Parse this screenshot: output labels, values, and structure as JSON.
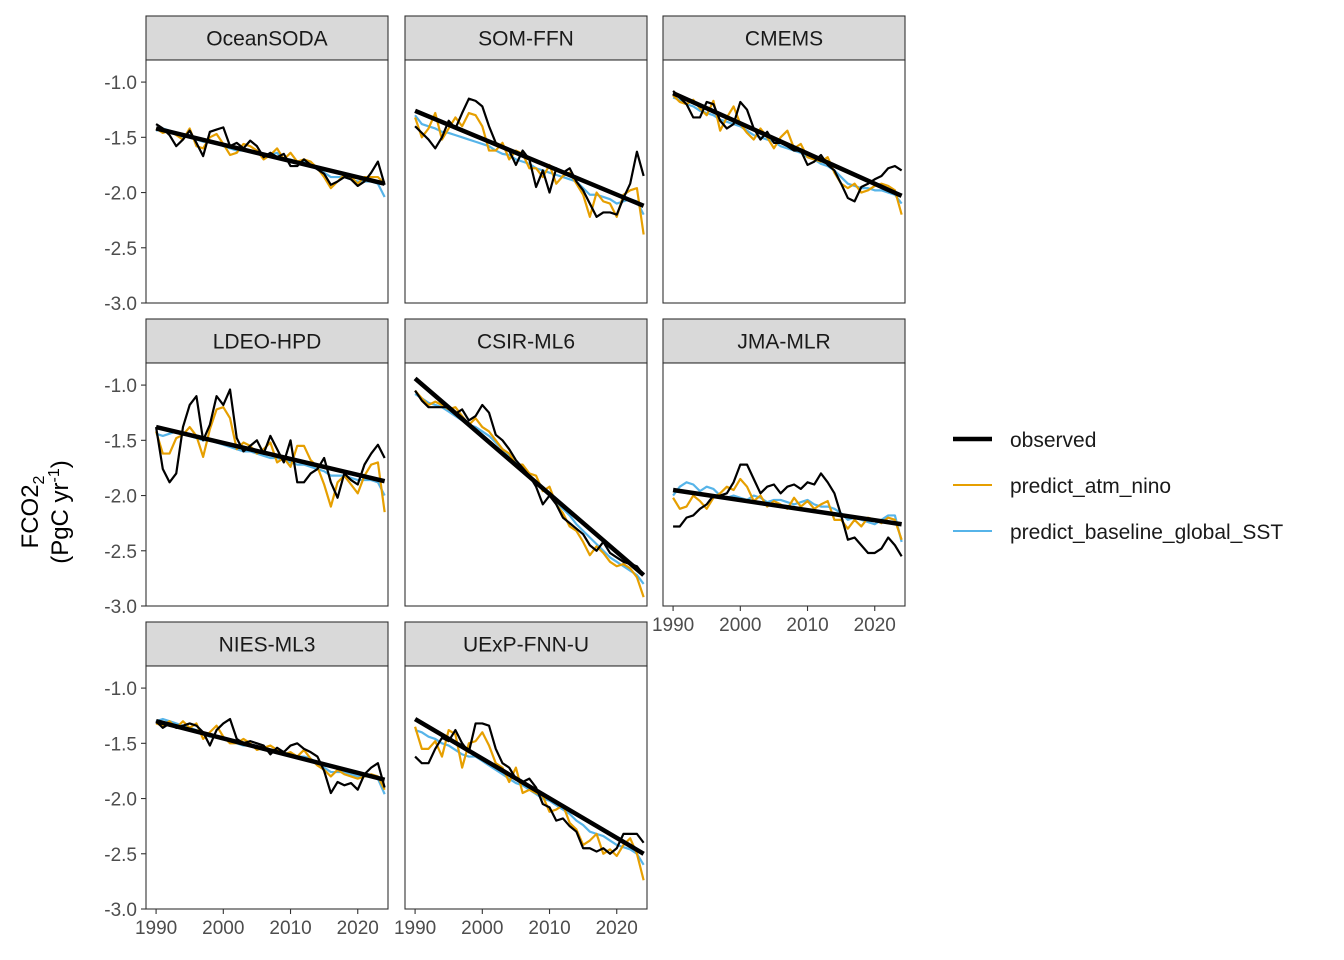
{
  "chart_data": {
    "type": "line",
    "facet_layout": "3 columns x 3 rows, free x-axis labels on bottom panels, shared y-axis",
    "ylabel": "FCO2",
    "ylabel_sub": "2",
    "ylabel_line2": "(PgC yr",
    "ylabel_sup": "-1",
    "ylabel_close": ")",
    "ylim": [
      -3.0,
      -0.8
    ],
    "yticks": [
      "-1.0",
      "-1.5",
      "-2.0",
      "-2.5",
      "-3.0"
    ],
    "ytick_values": [
      -1.0,
      -1.5,
      -2.0,
      -2.5,
      -3.0
    ],
    "xlim": [
      1988.5,
      2024.5
    ],
    "xticks": [
      "1990",
      "2000",
      "2010",
      "2020"
    ],
    "xtick_values": [
      1990,
      2000,
      2010,
      2020
    ],
    "grid": false,
    "legend_position": "right",
    "legend": [
      {
        "name": "observed",
        "color": "#000000"
      },
      {
        "name": "predict_atm_nino",
        "color": "#E69F00"
      },
      {
        "name": "predict_baseline_global_SST",
        "color": "#56B4E9"
      }
    ],
    "x_start": 1990,
    "panels": [
      {
        "title": "OceanSODA",
        "trend": [
          -1.42,
          -1.92
        ],
        "observed": [
          -1.38,
          -1.42,
          -1.48,
          -1.58,
          -1.52,
          -1.44,
          -1.55,
          -1.67,
          -1.45,
          -1.43,
          -1.41,
          -1.58,
          -1.55,
          -1.6,
          -1.53,
          -1.58,
          -1.68,
          -1.64,
          -1.68,
          -1.65,
          -1.76,
          -1.76,
          -1.7,
          -1.75,
          -1.79,
          -1.83,
          -1.93,
          -1.9,
          -1.86,
          -1.88,
          -1.94,
          -1.9,
          -1.82,
          -1.72,
          -1.93
        ],
        "predict_atm_nino": [
          -1.42,
          -1.46,
          -1.44,
          -1.48,
          -1.52,
          -1.42,
          -1.58,
          -1.6,
          -1.5,
          -1.47,
          -1.56,
          -1.66,
          -1.64,
          -1.56,
          -1.58,
          -1.62,
          -1.7,
          -1.66,
          -1.6,
          -1.7,
          -1.64,
          -1.72,
          -1.7,
          -1.72,
          -1.78,
          -1.86,
          -1.96,
          -1.9,
          -1.84,
          -1.86,
          -1.92,
          -1.86,
          -1.86,
          -1.86,
          -1.92
        ],
        "predict_baseline_global_SST": [
          -1.44,
          -1.42,
          -1.44,
          -1.46,
          -1.5,
          -1.48,
          -1.52,
          -1.54,
          -1.54,
          -1.55,
          -1.58,
          -1.6,
          -1.62,
          -1.62,
          -1.62,
          -1.64,
          -1.66,
          -1.66,
          -1.64,
          -1.7,
          -1.7,
          -1.72,
          -1.72,
          -1.74,
          -1.78,
          -1.82,
          -1.86,
          -1.86,
          -1.86,
          -1.88,
          -1.9,
          -1.9,
          -1.9,
          -1.92,
          -2.04
        ]
      },
      {
        "title": "SOM-FFN",
        "trend": [
          -1.26,
          -2.12
        ],
        "observed": [
          -1.4,
          -1.46,
          -1.52,
          -1.6,
          -1.5,
          -1.35,
          -1.42,
          -1.28,
          -1.15,
          -1.17,
          -1.22,
          -1.4,
          -1.55,
          -1.58,
          -1.62,
          -1.75,
          -1.62,
          -1.7,
          -1.95,
          -1.8,
          -2.0,
          -1.78,
          -1.82,
          -1.78,
          -1.9,
          -1.98,
          -2.1,
          -2.22,
          -2.18,
          -2.18,
          -2.2,
          -2.05,
          -1.92,
          -1.63,
          -1.85
        ],
        "predict_atm_nino": [
          -1.32,
          -1.5,
          -1.42,
          -1.28,
          -1.52,
          -1.42,
          -1.32,
          -1.4,
          -1.28,
          -1.3,
          -1.4,
          -1.62,
          -1.62,
          -1.55,
          -1.7,
          -1.62,
          -1.65,
          -1.78,
          -1.78,
          -1.86,
          -1.75,
          -1.92,
          -1.85,
          -1.82,
          -1.92,
          -2.02,
          -2.22,
          -2.0,
          -2.08,
          -2.1,
          -2.22,
          -2.02,
          -1.98,
          -1.96,
          -2.38
        ],
        "predict_baseline_global_SST": [
          -1.3,
          -1.38,
          -1.4,
          -1.42,
          -1.45,
          -1.46,
          -1.48,
          -1.5,
          -1.52,
          -1.54,
          -1.56,
          -1.58,
          -1.62,
          -1.65,
          -1.66,
          -1.7,
          -1.72,
          -1.74,
          -1.78,
          -1.8,
          -1.82,
          -1.84,
          -1.86,
          -1.88,
          -1.9,
          -1.96,
          -2.02,
          -2.02,
          -2.04,
          -2.06,
          -2.1,
          -2.08,
          -2.06,
          -2.08,
          -2.2
        ]
      },
      {
        "title": "CMEMS",
        "trend": [
          -1.1,
          -2.03
        ],
        "observed": [
          -1.08,
          -1.14,
          -1.2,
          -1.32,
          -1.32,
          -1.18,
          -1.2,
          -1.35,
          -1.42,
          -1.38,
          -1.18,
          -1.25,
          -1.42,
          -1.52,
          -1.45,
          -1.55,
          -1.55,
          -1.58,
          -1.62,
          -1.62,
          -1.75,
          -1.72,
          -1.66,
          -1.75,
          -1.8,
          -1.92,
          -2.05,
          -2.08,
          -1.95,
          -1.92,
          -1.88,
          -1.85,
          -1.78,
          -1.76,
          -1.8
        ],
        "predict_atm_nino": [
          -1.12,
          -1.18,
          -1.2,
          -1.16,
          -1.24,
          -1.3,
          -1.17,
          -1.44,
          -1.32,
          -1.22,
          -1.38,
          -1.46,
          -1.52,
          -1.42,
          -1.5,
          -1.6,
          -1.5,
          -1.44,
          -1.6,
          -1.56,
          -1.68,
          -1.7,
          -1.72,
          -1.68,
          -1.82,
          -1.92,
          -1.96,
          -1.92,
          -2.0,
          -1.98,
          -1.94,
          -1.92,
          -1.94,
          -1.98,
          -2.2
        ],
        "predict_baseline_global_SST": [
          -1.14,
          -1.16,
          -1.2,
          -1.22,
          -1.26,
          -1.28,
          -1.3,
          -1.34,
          -1.36,
          -1.38,
          -1.4,
          -1.44,
          -1.48,
          -1.5,
          -1.52,
          -1.54,
          -1.58,
          -1.6,
          -1.62,
          -1.64,
          -1.68,
          -1.7,
          -1.74,
          -1.76,
          -1.8,
          -1.86,
          -1.92,
          -1.94,
          -1.96,
          -1.96,
          -1.98,
          -1.98,
          -2.0,
          -2.02,
          -2.1
        ]
      },
      {
        "title": "LDEO-HPD",
        "trend": [
          -1.38,
          -1.87
        ],
        "observed": [
          -1.38,
          -1.76,
          -1.88,
          -1.8,
          -1.38,
          -1.18,
          -1.1,
          -1.5,
          -1.36,
          -1.1,
          -1.18,
          -1.04,
          -1.48,
          -1.6,
          -1.55,
          -1.5,
          -1.62,
          -1.46,
          -1.58,
          -1.7,
          -1.5,
          -1.88,
          -1.88,
          -1.8,
          -1.76,
          -1.66,
          -1.88,
          -2.02,
          -1.8,
          -1.86,
          -1.9,
          -1.72,
          -1.62,
          -1.54,
          -1.66
        ],
        "predict_atm_nino": [
          -1.42,
          -1.62,
          -1.62,
          -1.48,
          -1.45,
          -1.38,
          -1.46,
          -1.65,
          -1.4,
          -1.22,
          -1.2,
          -1.3,
          -1.58,
          -1.52,
          -1.55,
          -1.62,
          -1.58,
          -1.52,
          -1.7,
          -1.66,
          -1.74,
          -1.55,
          -1.55,
          -1.68,
          -1.74,
          -1.9,
          -2.1,
          -1.88,
          -1.82,
          -1.9,
          -1.98,
          -1.82,
          -1.72,
          -1.7,
          -2.15
        ],
        "predict_baseline_global_SST": [
          -1.44,
          -1.46,
          -1.44,
          -1.42,
          -1.44,
          -1.46,
          -1.48,
          -1.5,
          -1.5,
          -1.52,
          -1.54,
          -1.56,
          -1.58,
          -1.6,
          -1.6,
          -1.62,
          -1.64,
          -1.66,
          -1.66,
          -1.68,
          -1.7,
          -1.72,
          -1.72,
          -1.74,
          -1.76,
          -1.78,
          -1.82,
          -1.82,
          -1.82,
          -1.84,
          -1.86,
          -1.86,
          -1.86,
          -1.88,
          -2.0
        ]
      },
      {
        "title": "CSIR-ML6",
        "trend": [
          -0.94,
          -2.72
        ],
        "observed": [
          -1.05,
          -1.14,
          -1.2,
          -1.2,
          -1.2,
          -1.2,
          -1.26,
          -1.22,
          -1.32,
          -1.28,
          -1.18,
          -1.25,
          -1.45,
          -1.5,
          -1.58,
          -1.68,
          -1.75,
          -1.82,
          -1.92,
          -2.08,
          -2.0,
          -2.08,
          -2.2,
          -2.25,
          -2.3,
          -2.35,
          -2.45,
          -2.5,
          -2.42,
          -2.52,
          -2.56,
          -2.6,
          -2.62,
          -2.64,
          -2.72
        ],
        "predict_atm_nino": [
          -1.05,
          -1.12,
          -1.18,
          -1.15,
          -1.18,
          -1.22,
          -1.2,
          -1.28,
          -1.36,
          -1.3,
          -1.38,
          -1.42,
          -1.5,
          -1.58,
          -1.62,
          -1.72,
          -1.72,
          -1.8,
          -1.82,
          -1.96,
          -1.92,
          -2.08,
          -2.16,
          -2.28,
          -2.32,
          -2.42,
          -2.54,
          -2.46,
          -2.52,
          -2.6,
          -2.64,
          -2.62,
          -2.66,
          -2.74,
          -2.92
        ],
        "predict_baseline_global_SST": [
          -1.08,
          -1.12,
          -1.16,
          -1.18,
          -1.2,
          -1.24,
          -1.28,
          -1.32,
          -1.36,
          -1.38,
          -1.42,
          -1.46,
          -1.52,
          -1.58,
          -1.64,
          -1.7,
          -1.76,
          -1.82,
          -1.88,
          -1.94,
          -2.0,
          -2.06,
          -2.12,
          -2.18,
          -2.26,
          -2.32,
          -2.38,
          -2.44,
          -2.5,
          -2.56,
          -2.6,
          -2.64,
          -2.68,
          -2.72,
          -2.8
        ]
      },
      {
        "title": "JMA-MLR",
        "trend": [
          -1.95,
          -2.26
        ],
        "observed": [
          -2.28,
          -2.28,
          -2.2,
          -2.18,
          -2.12,
          -2.08,
          -2.0,
          -2.0,
          -1.98,
          -1.88,
          -1.72,
          -1.72,
          -1.85,
          -1.98,
          -1.92,
          -1.9,
          -1.98,
          -1.92,
          -1.9,
          -1.94,
          -1.88,
          -1.9,
          -1.8,
          -1.88,
          -1.98,
          -2.18,
          -2.4,
          -2.38,
          -2.45,
          -2.52,
          -2.52,
          -2.48,
          -2.38,
          -2.45,
          -2.55
        ],
        "predict_atm_nino": [
          -2.02,
          -2.12,
          -2.1,
          -2.0,
          -2.05,
          -2.12,
          -2.02,
          -1.98,
          -1.92,
          -1.95,
          -1.85,
          -1.92,
          -2.05,
          -2.0,
          -2.1,
          -2.05,
          -2.08,
          -2.12,
          -2.02,
          -2.1,
          -2.05,
          -2.12,
          -2.08,
          -2.05,
          -2.22,
          -2.22,
          -2.3,
          -2.22,
          -2.28,
          -2.2,
          -2.22,
          -2.25,
          -2.2,
          -2.22,
          -2.4
        ],
        "predict_baseline_global_SST": [
          -2.0,
          -1.92,
          -1.88,
          -1.9,
          -1.96,
          -1.92,
          -1.94,
          -2.0,
          -2.02,
          -2.0,
          -2.02,
          -2.04,
          -2.0,
          -2.02,
          -2.06,
          -2.04,
          -2.04,
          -2.06,
          -2.08,
          -2.06,
          -2.04,
          -2.08,
          -2.1,
          -2.1,
          -2.12,
          -2.16,
          -2.22,
          -2.2,
          -2.22,
          -2.24,
          -2.26,
          -2.22,
          -2.18,
          -2.18,
          -2.42
        ]
      },
      {
        "title": "NIES-ML3",
        "trend": [
          -1.3,
          -1.83
        ],
        "observed": [
          -1.3,
          -1.36,
          -1.32,
          -1.36,
          -1.34,
          -1.32,
          -1.34,
          -1.4,
          -1.52,
          -1.38,
          -1.32,
          -1.28,
          -1.46,
          -1.5,
          -1.48,
          -1.5,
          -1.52,
          -1.6,
          -1.54,
          -1.58,
          -1.52,
          -1.5,
          -1.55,
          -1.58,
          -1.62,
          -1.75,
          -1.95,
          -1.85,
          -1.88,
          -1.86,
          -1.92,
          -1.78,
          -1.72,
          -1.68,
          -1.9
        ],
        "predict_atm_nino": [
          -1.32,
          -1.34,
          -1.3,
          -1.36,
          -1.3,
          -1.36,
          -1.32,
          -1.46,
          -1.4,
          -1.34,
          -1.44,
          -1.5,
          -1.5,
          -1.46,
          -1.5,
          -1.56,
          -1.54,
          -1.52,
          -1.56,
          -1.6,
          -1.58,
          -1.62,
          -1.56,
          -1.64,
          -1.7,
          -1.74,
          -1.8,
          -1.74,
          -1.78,
          -1.8,
          -1.82,
          -1.8,
          -1.78,
          -1.8,
          -1.92
        ],
        "predict_baseline_global_SST": [
          -1.3,
          -1.28,
          -1.3,
          -1.32,
          -1.34,
          -1.36,
          -1.38,
          -1.42,
          -1.44,
          -1.44,
          -1.46,
          -1.48,
          -1.5,
          -1.52,
          -1.52,
          -1.54,
          -1.56,
          -1.56,
          -1.58,
          -1.6,
          -1.6,
          -1.62,
          -1.62,
          -1.64,
          -1.68,
          -1.72,
          -1.76,
          -1.76,
          -1.76,
          -1.78,
          -1.8,
          -1.8,
          -1.8,
          -1.82,
          -1.96
        ]
      },
      {
        "title": "UExP-FNN-U",
        "trend": [
          -1.28,
          -2.5
        ],
        "observed": [
          -1.62,
          -1.68,
          -1.68,
          -1.55,
          -1.45,
          -1.48,
          -1.38,
          -1.5,
          -1.58,
          -1.32,
          -1.32,
          -1.34,
          -1.55,
          -1.68,
          -1.72,
          -1.82,
          -1.85,
          -1.82,
          -1.9,
          -2.05,
          -2.08,
          -2.2,
          -2.18,
          -2.25,
          -2.3,
          -2.45,
          -2.45,
          -2.48,
          -2.45,
          -2.5,
          -2.45,
          -2.32,
          -2.32,
          -2.32,
          -2.4
        ],
        "predict_atm_nino": [
          -1.35,
          -1.55,
          -1.55,
          -1.48,
          -1.62,
          -1.38,
          -1.42,
          -1.72,
          -1.5,
          -1.48,
          -1.4,
          -1.52,
          -1.68,
          -1.72,
          -1.85,
          -1.72,
          -1.95,
          -1.92,
          -1.95,
          -1.98,
          -2.12,
          -2.1,
          -2.06,
          -2.22,
          -2.28,
          -2.42,
          -2.38,
          -2.32,
          -2.5,
          -2.46,
          -2.52,
          -2.42,
          -2.36,
          -2.5,
          -2.74
        ],
        "predict_baseline_global_SST": [
          -1.38,
          -1.4,
          -1.44,
          -1.46,
          -1.5,
          -1.52,
          -1.56,
          -1.6,
          -1.62,
          -1.62,
          -1.66,
          -1.7,
          -1.74,
          -1.78,
          -1.82,
          -1.86,
          -1.88,
          -1.92,
          -1.96,
          -2.0,
          -2.02,
          -2.06,
          -2.1,
          -2.14,
          -2.2,
          -2.24,
          -2.3,
          -2.32,
          -2.34,
          -2.38,
          -2.42,
          -2.44,
          -2.46,
          -2.5,
          -2.6
        ]
      }
    ]
  }
}
